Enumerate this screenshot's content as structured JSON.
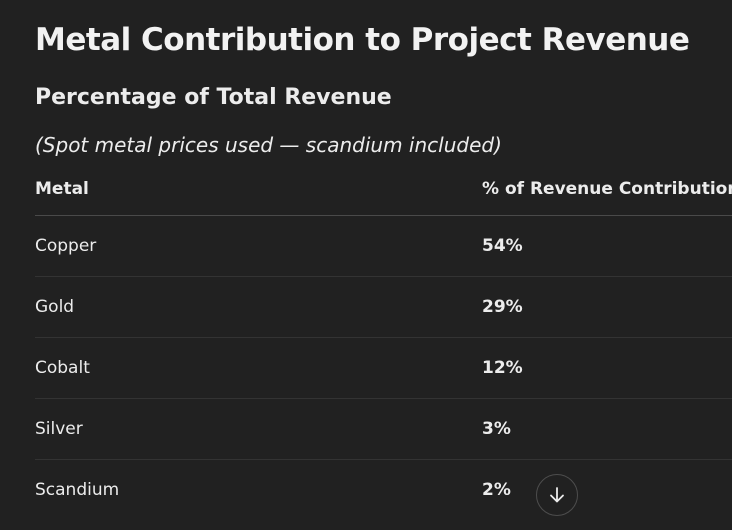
{
  "heading": {
    "title": "Metal Contribution to Project Revenue",
    "subtitle": "Percentage of Total Revenue",
    "note": "(Spot metal prices used — scandium included)"
  },
  "table": {
    "columns": [
      "Metal",
      "% of Revenue Contribution"
    ],
    "rows": [
      {
        "metal": "Copper",
        "share": "54%"
      },
      {
        "metal": "Gold",
        "share": "29%"
      },
      {
        "metal": "Cobalt",
        "share": "12%"
      },
      {
        "metal": "Silver",
        "share": "3%"
      },
      {
        "metal": "Scandium",
        "share": "2%"
      }
    ]
  },
  "controls": {
    "scroll_down_icon": "arrow-down-icon"
  },
  "colors": {
    "background": "#212121",
    "text": "#ececec",
    "divider": "#333333"
  }
}
